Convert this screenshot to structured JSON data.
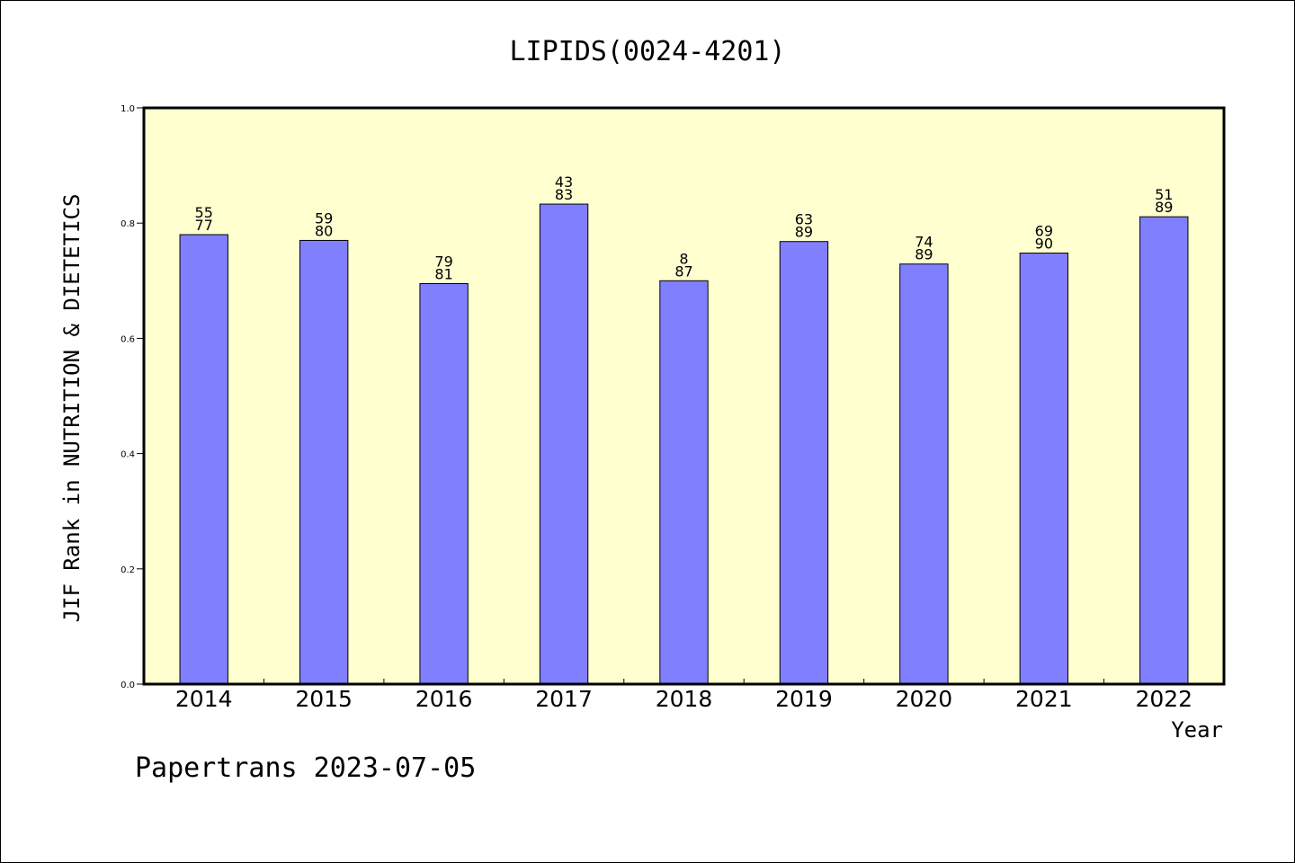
{
  "chart_data": {
    "type": "bar",
    "title": "LIPIDS(0024-4201)",
    "xlabel": "Year",
    "ylabel": "JIF Rank in NUTRITION & DIETETICS",
    "ylim": [
      0.0,
      1.0
    ],
    "yticks": [
      "0.0",
      "0.2",
      "0.4",
      "0.6",
      "0.8",
      "1.0"
    ],
    "categories": [
      "2014",
      "2015",
      "2016",
      "2017",
      "2018",
      "2019",
      "2020",
      "2021",
      "2022"
    ],
    "values": [
      0.78,
      0.77,
      0.695,
      0.833,
      0.7,
      0.768,
      0.729,
      0.748,
      0.811
    ],
    "rank_labels": [
      "55",
      "59",
      "79",
      "43",
      "8",
      "63",
      "74",
      "69",
      "51"
    ],
    "total_labels": [
      "77",
      "80",
      "81",
      "83",
      "87",
      "89",
      "89",
      "90",
      "89"
    ],
    "bar_color": "#8080ff",
    "plot_background": "#ffffd0"
  },
  "footer": "Papertrans 2023-07-05"
}
